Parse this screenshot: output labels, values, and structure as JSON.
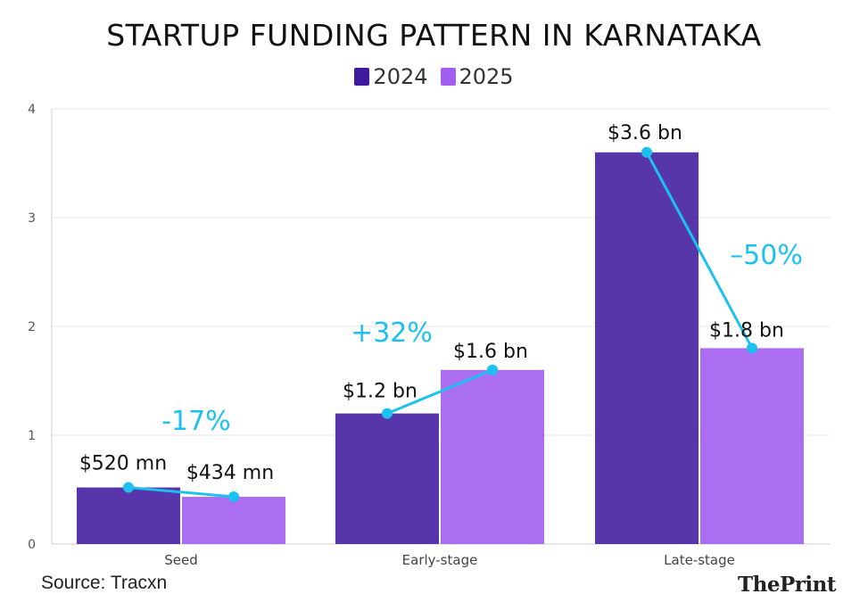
{
  "chart_data": {
    "type": "bar",
    "title": "STARTUP FUNDING PATTERN IN KARNATAKA",
    "categories": [
      "Seed",
      "Early-stage",
      "Late-stage"
    ],
    "series": [
      {
        "name": "2024",
        "color": "#3f1a9e",
        "values": [
          0.52,
          1.2,
          3.6
        ],
        "labels": [
          "$520 mn",
          "$1.2 bn",
          "$3.6 bn"
        ]
      },
      {
        "name": "2025",
        "color": "#a35ef0",
        "values": [
          0.434,
          1.6,
          1.8
        ],
        "labels": [
          "$434 mn",
          "$1.6 bn",
          "$1.8 bn"
        ]
      }
    ],
    "changes": [
      "-17%",
      "+32%",
      "–50%"
    ],
    "change_color": "#1cc1f0",
    "y_ticks": [
      "0",
      "1",
      "2",
      "3",
      "4"
    ],
    "ylim": [
      0,
      4
    ],
    "xlabel": "",
    "ylabel": "",
    "legend_position": "top-center",
    "grid": true
  },
  "source": "Source: Tracxn",
  "logo": {
    "part1": "The",
    "part2": "Print"
  }
}
